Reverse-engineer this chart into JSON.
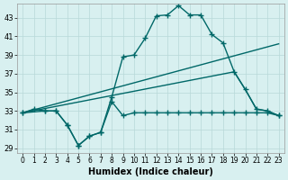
{
  "xlabel": "Humidex (Indice chaleur)",
  "background_color": "#d8f0f0",
  "grid_color": "#b8d8d8",
  "line_color": "#006868",
  "xlim": [
    -0.5,
    23.5
  ],
  "ylim": [
    28.5,
    44.5
  ],
  "yticks": [
    29,
    31,
    33,
    35,
    37,
    39,
    41,
    43
  ],
  "xticks": [
    0,
    1,
    2,
    3,
    4,
    5,
    6,
    7,
    8,
    9,
    10,
    11,
    12,
    13,
    14,
    15,
    16,
    17,
    18,
    19,
    20,
    21,
    22,
    23
  ],
  "line1_x": [
    0,
    1,
    2,
    3,
    4,
    5,
    6,
    7,
    8,
    9,
    10,
    11,
    12,
    13,
    14,
    15,
    16,
    17,
    18,
    19,
    20,
    21,
    22,
    23
  ],
  "line1_y": [
    32.8,
    33.2,
    33.0,
    33.0,
    31.5,
    29.3,
    30.3,
    30.7,
    34.0,
    32.5,
    32.8,
    32.8,
    32.8,
    32.8,
    32.8,
    32.8,
    32.8,
    32.8,
    32.8,
    32.8,
    32.8,
    32.8,
    32.8,
    32.5
  ],
  "line2_x": [
    0,
    2,
    3,
    4,
    5,
    6,
    7,
    8,
    9,
    10,
    11,
    12,
    13,
    14,
    15,
    16,
    17,
    18,
    19,
    20,
    21,
    22,
    23
  ],
  "line2_y": [
    32.8,
    33.0,
    33.0,
    31.5,
    29.3,
    30.3,
    30.7,
    34.5,
    38.8,
    39.0,
    40.8,
    43.2,
    43.3,
    44.3,
    43.3,
    43.3,
    41.2,
    40.3,
    37.2,
    35.3,
    33.2,
    33.0,
    32.5
  ],
  "line3_x": [
    0,
    23
  ],
  "line3_y": [
    32.8,
    40.2
  ],
  "line4_x": [
    0,
    19,
    20,
    21,
    22,
    23
  ],
  "line4_y": [
    32.8,
    37.2,
    35.3,
    33.2,
    33.0,
    32.5
  ],
  "marker": "+",
  "markersize": 4,
  "linewidth": 1.0
}
